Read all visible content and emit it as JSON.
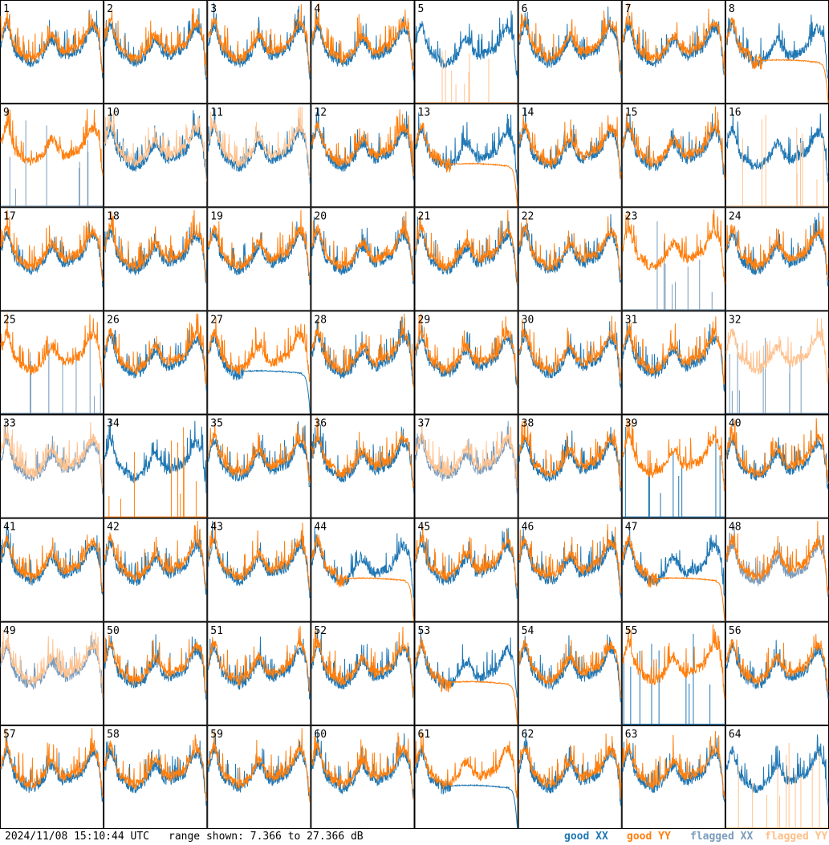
{
  "colors": {
    "good_xx": "#1f77b4",
    "good_yy": "#ff7f0e",
    "flagged_xx": "#7a9cbc",
    "flagged_yy": "#ffc28f",
    "grid_line": "#000000"
  },
  "footer": {
    "timestamp": "2024/11/08 15:10:44 UTC",
    "range": "range shown: 7.366 to 27.366 dB"
  },
  "legend": {
    "good_xx": "good XX",
    "good_yy": "good YY",
    "flagged_xx": "flagged XX",
    "flagged_yy": "flagged YY"
  },
  "chart_data": {
    "type": "line",
    "grid": {
      "rows": 8,
      "cols": 8
    },
    "ylim_db": [
      7.366,
      27.366
    ],
    "panels": [
      {
        "label": "1",
        "xx": "good",
        "yy": "good",
        "xx_shape": "normal",
        "yy_shape": "normal"
      },
      {
        "label": "2",
        "xx": "good",
        "yy": "good",
        "xx_shape": "normal",
        "yy_shape": "normal"
      },
      {
        "label": "3",
        "xx": "good",
        "yy": "good",
        "xx_shape": "normal",
        "yy_shape": "normal"
      },
      {
        "label": "4",
        "xx": "good",
        "yy": "good",
        "xx_shape": "normal",
        "yy_shape": "normal"
      },
      {
        "label": "5",
        "xx": "good",
        "yy": "flagged",
        "xx_shape": "normal",
        "yy_shape": "spikes"
      },
      {
        "label": "6",
        "xx": "good",
        "yy": "good",
        "xx_shape": "normal",
        "yy_shape": "normal"
      },
      {
        "label": "7",
        "xx": "good",
        "yy": "good",
        "xx_shape": "normal",
        "yy_shape": "normal"
      },
      {
        "label": "8",
        "xx": "good",
        "yy": "good",
        "xx_shape": "normal",
        "yy_shape": "dropoff"
      },
      {
        "label": "9",
        "xx": "flagged",
        "yy": "good",
        "xx_shape": "spikes",
        "yy_shape": "normal"
      },
      {
        "label": "10",
        "xx": "good",
        "yy": "flagged",
        "xx_shape": "normal",
        "yy_shape": "normal"
      },
      {
        "label": "11",
        "xx": "good",
        "yy": "flagged",
        "xx_shape": "normal",
        "yy_shape": "normal"
      },
      {
        "label": "12",
        "xx": "good",
        "yy": "good",
        "xx_shape": "normal",
        "yy_shape": "normal"
      },
      {
        "label": "13",
        "xx": "good",
        "yy": "good",
        "xx_shape": "normal",
        "yy_shape": "dropoff"
      },
      {
        "label": "14",
        "xx": "good",
        "yy": "good",
        "xx_shape": "normal",
        "yy_shape": "normal"
      },
      {
        "label": "15",
        "xx": "good",
        "yy": "good",
        "xx_shape": "normal",
        "yy_shape": "normal"
      },
      {
        "label": "16",
        "xx": "good",
        "yy": "flagged",
        "xx_shape": "normal",
        "yy_shape": "spikes"
      },
      {
        "label": "17",
        "xx": "good",
        "yy": "good",
        "xx_shape": "normal",
        "yy_shape": "normal"
      },
      {
        "label": "18",
        "xx": "good",
        "yy": "good",
        "xx_shape": "normal",
        "yy_shape": "normal"
      },
      {
        "label": "19",
        "xx": "good",
        "yy": "good",
        "xx_shape": "normal",
        "yy_shape": "normal"
      },
      {
        "label": "20",
        "xx": "good",
        "yy": "good",
        "xx_shape": "normal",
        "yy_shape": "normal"
      },
      {
        "label": "21",
        "xx": "good",
        "yy": "good",
        "xx_shape": "normal",
        "yy_shape": "normal"
      },
      {
        "label": "22",
        "xx": "good",
        "yy": "good",
        "xx_shape": "normal",
        "yy_shape": "normal"
      },
      {
        "label": "23",
        "xx": "flagged",
        "yy": "good",
        "xx_shape": "spikes",
        "yy_shape": "normal"
      },
      {
        "label": "24",
        "xx": "good",
        "yy": "good",
        "xx_shape": "normal",
        "yy_shape": "normal"
      },
      {
        "label": "25",
        "xx": "flagged",
        "yy": "good",
        "xx_shape": "spikes",
        "yy_shape": "normal"
      },
      {
        "label": "26",
        "xx": "good",
        "yy": "good",
        "xx_shape": "normal",
        "yy_shape": "normal"
      },
      {
        "label": "27",
        "xx": "good",
        "yy": "good",
        "xx_shape": "dropoff",
        "yy_shape": "normal"
      },
      {
        "label": "28",
        "xx": "good",
        "yy": "good",
        "xx_shape": "normal",
        "yy_shape": "normal"
      },
      {
        "label": "29",
        "xx": "good",
        "yy": "good",
        "xx_shape": "normal",
        "yy_shape": "normal"
      },
      {
        "label": "30",
        "xx": "good",
        "yy": "good",
        "xx_shape": "normal",
        "yy_shape": "normal"
      },
      {
        "label": "31",
        "xx": "good",
        "yy": "good",
        "xx_shape": "normal",
        "yy_shape": "normal"
      },
      {
        "label": "32",
        "xx": "flagged",
        "yy": "flagged",
        "xx_shape": "spikes",
        "yy_shape": "normal"
      },
      {
        "label": "33",
        "xx": "flagged",
        "yy": "flagged",
        "xx_shape": "normal",
        "yy_shape": "normal"
      },
      {
        "label": "34",
        "xx": "good",
        "yy": "good",
        "xx_shape": "normal",
        "yy_shape": "spikes"
      },
      {
        "label": "35",
        "xx": "good",
        "yy": "good",
        "xx_shape": "normal",
        "yy_shape": "normal"
      },
      {
        "label": "36",
        "xx": "good",
        "yy": "good",
        "xx_shape": "normal",
        "yy_shape": "normal"
      },
      {
        "label": "37",
        "xx": "flagged",
        "yy": "flagged",
        "xx_shape": "normal",
        "yy_shape": "normal"
      },
      {
        "label": "38",
        "xx": "good",
        "yy": "good",
        "xx_shape": "normal",
        "yy_shape": "normal"
      },
      {
        "label": "39",
        "xx": "good",
        "yy": "good",
        "xx_shape": "spikes",
        "yy_shape": "normal"
      },
      {
        "label": "40",
        "xx": "good",
        "yy": "good",
        "xx_shape": "normal",
        "yy_shape": "normal"
      },
      {
        "label": "41",
        "xx": "good",
        "yy": "good",
        "xx_shape": "normal",
        "yy_shape": "normal"
      },
      {
        "label": "42",
        "xx": "good",
        "yy": "good",
        "xx_shape": "normal",
        "yy_shape": "normal"
      },
      {
        "label": "43",
        "xx": "good",
        "yy": "good",
        "xx_shape": "normal",
        "yy_shape": "normal"
      },
      {
        "label": "44",
        "xx": "good",
        "yy": "good",
        "xx_shape": "normal",
        "yy_shape": "dropoff"
      },
      {
        "label": "45",
        "xx": "good",
        "yy": "good",
        "xx_shape": "normal",
        "yy_shape": "normal"
      },
      {
        "label": "46",
        "xx": "good",
        "yy": "good",
        "xx_shape": "normal",
        "yy_shape": "normal"
      },
      {
        "label": "47",
        "xx": "good",
        "yy": "good",
        "xx_shape": "normal",
        "yy_shape": "dropoff"
      },
      {
        "label": "48",
        "xx": "flagged",
        "yy": "good",
        "xx_shape": "normal",
        "yy_shape": "normal"
      },
      {
        "label": "49",
        "xx": "flagged",
        "yy": "flagged",
        "xx_shape": "normal",
        "yy_shape": "normal"
      },
      {
        "label": "50",
        "xx": "good",
        "yy": "good",
        "xx_shape": "normal",
        "yy_shape": "normal"
      },
      {
        "label": "51",
        "xx": "good",
        "yy": "good",
        "xx_shape": "normal",
        "yy_shape": "normal"
      },
      {
        "label": "52",
        "xx": "good",
        "yy": "good",
        "xx_shape": "normal",
        "yy_shape": "normal"
      },
      {
        "label": "53",
        "xx": "good",
        "yy": "good",
        "xx_shape": "normal",
        "yy_shape": "dropoff"
      },
      {
        "label": "54",
        "xx": "good",
        "yy": "good",
        "xx_shape": "normal",
        "yy_shape": "normal"
      },
      {
        "label": "55",
        "xx": "good",
        "yy": "good",
        "xx_shape": "spikes",
        "yy_shape": "normal"
      },
      {
        "label": "56",
        "xx": "good",
        "yy": "good",
        "xx_shape": "normal",
        "yy_shape": "normal"
      },
      {
        "label": "57",
        "xx": "good",
        "yy": "good",
        "xx_shape": "normal",
        "yy_shape": "normal"
      },
      {
        "label": "58",
        "xx": "good",
        "yy": "good",
        "xx_shape": "normal",
        "yy_shape": "normal"
      },
      {
        "label": "59",
        "xx": "good",
        "yy": "good",
        "xx_shape": "normal",
        "yy_shape": "normal"
      },
      {
        "label": "60",
        "xx": "good",
        "yy": "good",
        "xx_shape": "normal",
        "yy_shape": "normal"
      },
      {
        "label": "61",
        "xx": "good",
        "yy": "good",
        "xx_shape": "dropoff",
        "yy_shape": "normal"
      },
      {
        "label": "62",
        "xx": "good",
        "yy": "good",
        "xx_shape": "normal",
        "yy_shape": "normal"
      },
      {
        "label": "63",
        "xx": "good",
        "yy": "good",
        "xx_shape": "normal",
        "yy_shape": "normal"
      },
      {
        "label": "64",
        "xx": "good",
        "yy": "flagged",
        "xx_shape": "normal",
        "yy_shape": "spikes"
      }
    ]
  }
}
